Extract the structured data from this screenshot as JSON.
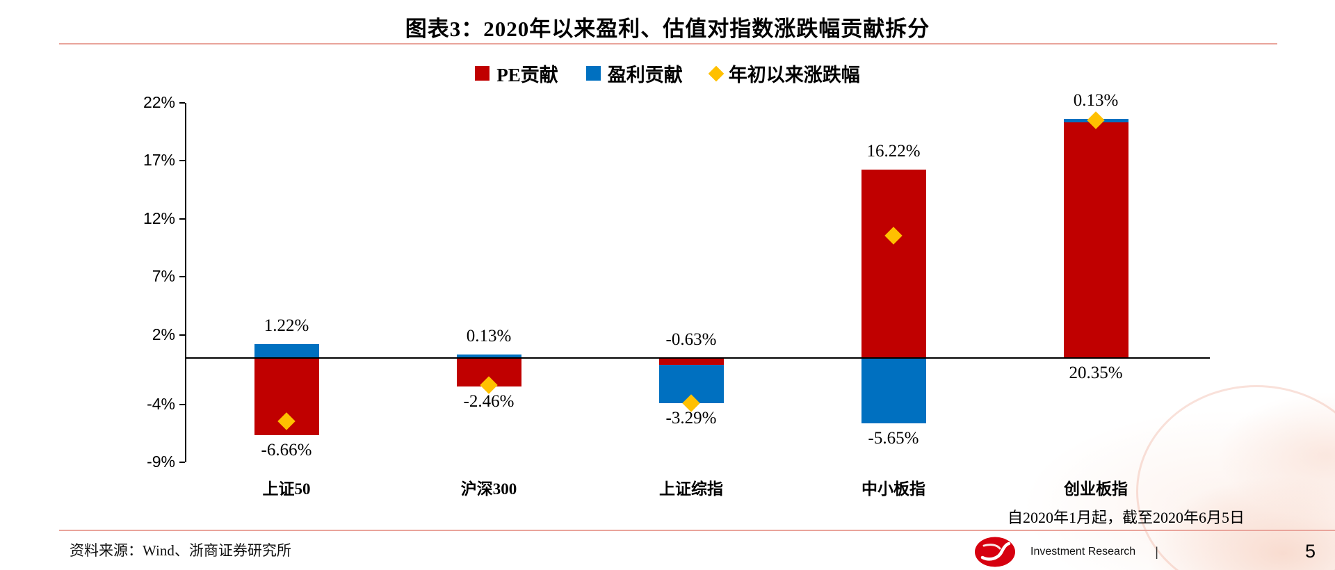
{
  "title": "图表3：2020年以来盈利、估值对指数涨跌幅贡献拆分",
  "legend": {
    "items": [
      {
        "label": "PE贡献",
        "marker": "square",
        "color": "#C00000"
      },
      {
        "label": "盈利贡献",
        "marker": "square",
        "color": "#0070C0"
      },
      {
        "label": "年初以来涨跌幅",
        "marker": "diamond",
        "color": "#FFC000"
      }
    ]
  },
  "chart_data": {
    "type": "bar",
    "stacked": true,
    "title": "图表3：2020年以来盈利、估值对指数涨跌幅贡献拆分",
    "categories": [
      "上证50",
      "沪深300",
      "上证综指",
      "中小板指",
      "创业板指"
    ],
    "series": [
      {
        "name": "PE贡献",
        "type": "bar",
        "color": "#C00000",
        "values": [
          -6.66,
          -2.46,
          -0.63,
          16.22,
          20.35
        ]
      },
      {
        "name": "盈利贡献",
        "type": "bar",
        "color": "#0070C0",
        "values": [
          1.22,
          0.13,
          -3.29,
          -5.65,
          0.13
        ]
      },
      {
        "name": "年初以来涨跌幅",
        "type": "scatter",
        "marker": "diamond",
        "color": "#FFC000",
        "values": [
          -5.44,
          -2.33,
          -3.92,
          10.57,
          20.48
        ]
      }
    ],
    "bar_labels": [
      {
        "top": "1.22%",
        "bottom": "-6.66%"
      },
      {
        "top": "0.13%",
        "bottom": "-2.46%"
      },
      {
        "top": "-0.63%",
        "bottom": "-3.29%"
      },
      {
        "top": "16.22%",
        "bottom": "-5.65%"
      },
      {
        "top": "0.13%",
        "bottom": "20.35%"
      }
    ],
    "y_ticks": [
      {
        "label": "22%",
        "value": 22
      },
      {
        "label": "17%",
        "value": 17
      },
      {
        "label": "12%",
        "value": 12
      },
      {
        "label": "7%",
        "value": 7
      },
      {
        "label": "2%",
        "value": 2
      },
      {
        "label": "-4%",
        "value": -4
      },
      {
        "label": "-9%",
        "value": -9
      }
    ],
    "ylim": [
      -9,
      22
    ],
    "grid": false,
    "legend_position": "top"
  },
  "note": "自2020年1月起，截至2020年6月5日",
  "footer": {
    "source": "资料来源：Wind、浙商证券研究所",
    "brand": "Investment Research",
    "divider": "|",
    "page": "5",
    "logo_color": "#D6000F"
  }
}
